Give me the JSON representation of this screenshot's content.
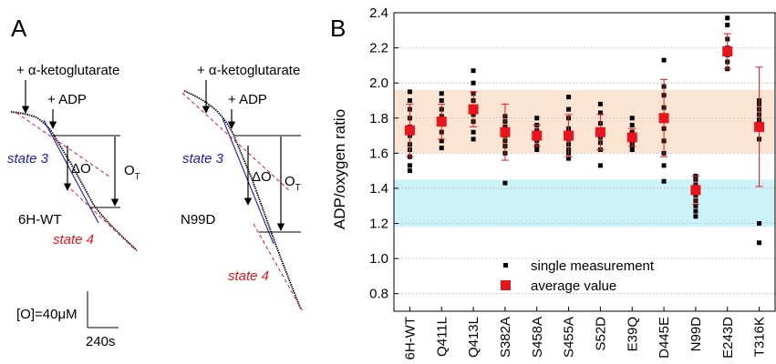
{
  "panel_a": {
    "label": "A",
    "left_trace": {
      "sample": "6H-WT",
      "substrate_label": "+ α-ketoglutarate",
      "adp_label": "+ ADP",
      "state3_label": "state 3",
      "state4_label": "state 4",
      "delta_o_label": "ΔO",
      "ot_main": "O",
      "ot_sub": "T"
    },
    "right_trace": {
      "sample": "N99D",
      "substrate_label": "+ α-ketoglutarate",
      "adp_label": "+ ADP",
      "state3_label": "state 3",
      "state4_label": "state 4",
      "delta_o_label": "ΔO",
      "ot_main": "O",
      "ot_sub": "T"
    },
    "scale_o_label": "[O]=40μM",
    "scale_t_label": "240s",
    "colors": {
      "state3": "#1a1acc",
      "state4": "#e8141e",
      "trace": "#000000"
    }
  },
  "chart_data": {
    "panel_label": "B",
    "type": "scatter",
    "ylabel": "ADP/oxygen ratio",
    "ylim": [
      0.7,
      2.4
    ],
    "yticks": [
      "0.8",
      "1.0",
      "1.2",
      "1.4",
      "1.6",
      "1.8",
      "2.0",
      "2.2",
      "2.4"
    ],
    "grid": true,
    "categories": [
      "6H-WT",
      "Q411L",
      "Q413L",
      "S382A",
      "S458A",
      "S455A",
      "S52D",
      "E39Q",
      "D445E",
      "N99D",
      "E243D",
      "T316K"
    ],
    "bands": [
      {
        "from": 1.6,
        "to": 1.96,
        "color": "#fbe5d2"
      },
      {
        "from": 1.18,
        "to": 1.45,
        "color": "#cdf3fa"
      }
    ],
    "series": [
      {
        "name": "single measurement",
        "color": "#000000",
        "points": [
          [
            1.95,
            1.9,
            1.85,
            1.8,
            1.75,
            1.7,
            1.65,
            1.62,
            1.58,
            1.53,
            1.5
          ],
          [
            1.94,
            1.9,
            1.85,
            1.81,
            1.77,
            1.72,
            1.67,
            1.63
          ],
          [
            2.07,
            2.0,
            1.94,
            1.9,
            1.86,
            1.82,
            1.78,
            1.72,
            1.68
          ],
          [
            1.81,
            1.78,
            1.75,
            1.72,
            1.7,
            1.67,
            1.64,
            1.6,
            1.43
          ],
          [
            1.8,
            1.76,
            1.73,
            1.7,
            1.67,
            1.64,
            1.62
          ],
          [
            1.92,
            1.85,
            1.8,
            1.74,
            1.71,
            1.68,
            1.65,
            1.62,
            1.6,
            1.57
          ],
          [
            1.88,
            1.83,
            1.77,
            1.72,
            1.69,
            1.66,
            1.62,
            1.53
          ],
          [
            1.8,
            1.76,
            1.72,
            1.69,
            1.66,
            1.64,
            1.62
          ],
          [
            2.13,
            1.98,
            1.93,
            1.86,
            1.8,
            1.74,
            1.67,
            1.6,
            1.53,
            1.44
          ],
          [
            1.47,
            1.45,
            1.42,
            1.39,
            1.36,
            1.33,
            1.3,
            1.27,
            1.24
          ],
          [
            2.37,
            2.33,
            2.25,
            2.2,
            2.16,
            2.12,
            2.08
          ],
          [
            1.9,
            1.88,
            1.85,
            1.82,
            1.79,
            1.78,
            1.68,
            1.2,
            1.09
          ]
        ]
      },
      {
        "name": "average value",
        "color": "#e8141e",
        "values": [
          1.73,
          1.78,
          1.85,
          1.72,
          1.7,
          1.7,
          1.72,
          1.69,
          1.8,
          1.39,
          2.18,
          1.75
        ],
        "error": [
          0.15,
          0.1,
          0.1,
          0.16,
          0.06,
          0.12,
          0.1,
          0.05,
          0.22,
          0.08,
          0.1,
          0.34
        ]
      }
    ],
    "legend": {
      "position": "bottom-right",
      "entries": [
        "single measurement",
        "average value"
      ]
    }
  }
}
